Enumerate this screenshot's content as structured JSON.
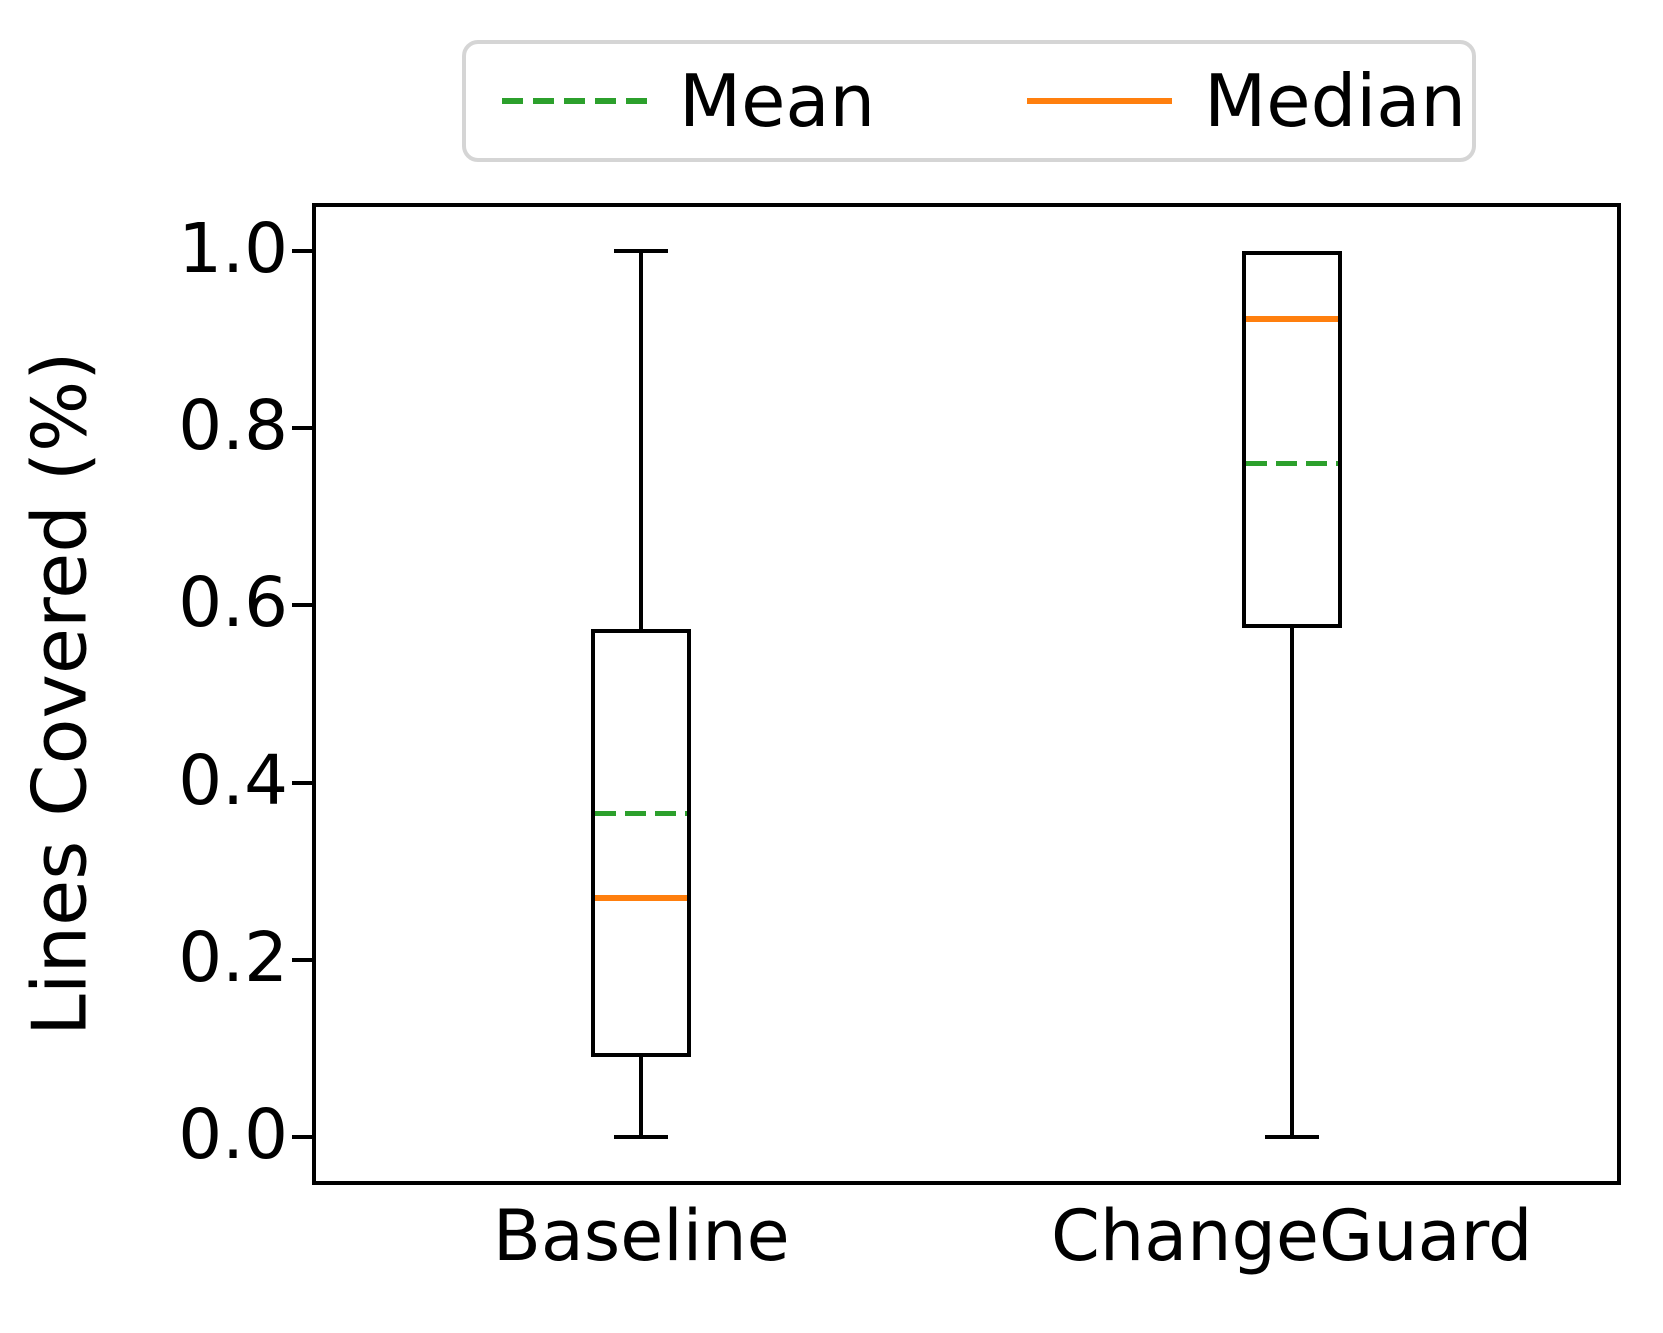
{
  "chart_data": {
    "type": "boxplot",
    "title": "",
    "xlabel": "",
    "ylabel": "Lines Covered (%)",
    "categories": [
      "Baseline",
      "ChangeGuard"
    ],
    "ylim": [
      -0.05,
      1.05
    ],
    "yticks": [
      {
        "value": 0.0,
        "label": "0.0"
      },
      {
        "value": 0.2,
        "label": "0.2"
      },
      {
        "value": 0.4,
        "label": "0.4"
      },
      {
        "value": 0.6,
        "label": "0.6"
      },
      {
        "value": 0.8,
        "label": "0.8"
      },
      {
        "value": 1.0,
        "label": "1.0"
      }
    ],
    "grid": false,
    "series": [
      {
        "name": "Baseline",
        "whisker_low": 0.0,
        "q1": 0.09,
        "median": 0.27,
        "mean": 0.365,
        "q3": 0.573,
        "whisker_high": 1.0
      },
      {
        "name": "ChangeGuard",
        "whisker_low": 0.0,
        "q1": 0.574,
        "median": 0.923,
        "mean": 0.76,
        "q3": 1.0,
        "whisker_high": 1.0
      }
    ],
    "legend": {
      "position": "top-center",
      "items": [
        {
          "label": "Mean",
          "line_style": "dashed",
          "color": "#2ca02c"
        },
        {
          "label": "Median",
          "line_style": "solid",
          "color": "#ff7f0e"
        }
      ]
    },
    "colors": {
      "box_outline": "#000000",
      "median_line": "#ff7f0e",
      "mean_line": "#2ca02c",
      "legend_border": "#d5d5d5",
      "background": "#ffffff"
    }
  }
}
